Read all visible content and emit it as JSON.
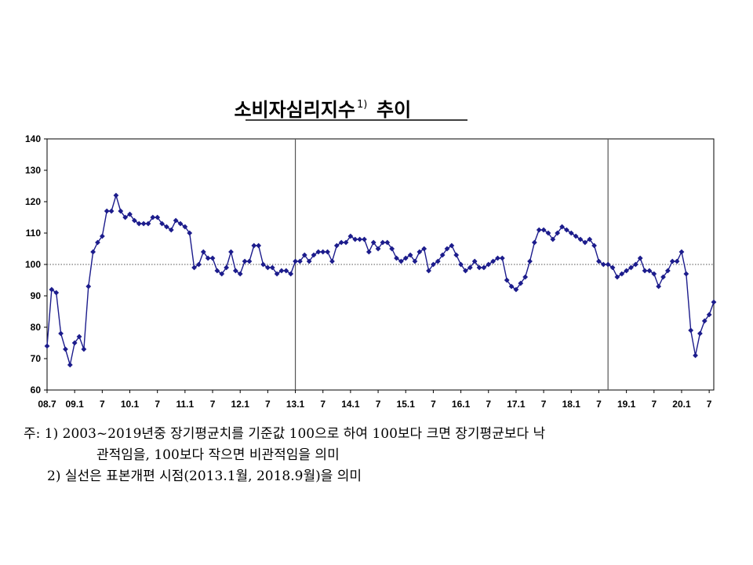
{
  "chart_data": {
    "type": "line",
    "title": "소비자심리지수",
    "title_sup": "1)",
    "title_suffix": "추이",
    "ylim": [
      60,
      140
    ],
    "yticks": [
      "60",
      "70",
      "80",
      "90",
      "100",
      "110",
      "120",
      "130",
      "140"
    ],
    "grid": false,
    "reference_line": 100,
    "vertical_lines": [
      "13.1",
      "18.9"
    ],
    "start": "2008.7",
    "xtick_labels": [
      {
        "label": "08.7",
        "month_index": 0
      },
      {
        "label": "09.1",
        "month_index": 6
      },
      {
        "label": "7",
        "month_index": 12
      },
      {
        "label": "10.1",
        "month_index": 18
      },
      {
        "label": "7",
        "month_index": 24
      },
      {
        "label": "11.1",
        "month_index": 30
      },
      {
        "label": "7",
        "month_index": 36
      },
      {
        "label": "12.1",
        "month_index": 42
      },
      {
        "label": "7",
        "month_index": 48
      },
      {
        "label": "13.1",
        "month_index": 54
      },
      {
        "label": "7",
        "month_index": 60
      },
      {
        "label": "14.1",
        "month_index": 66
      },
      {
        "label": "7",
        "month_index": 72
      },
      {
        "label": "15.1",
        "month_index": 78
      },
      {
        "label": "7",
        "month_index": 84
      },
      {
        "label": "16.1",
        "month_index": 90
      },
      {
        "label": "7",
        "month_index": 96
      },
      {
        "label": "17.1",
        "month_index": 102
      },
      {
        "label": "7",
        "month_index": 108
      },
      {
        "label": "18.1",
        "month_index": 114
      },
      {
        "label": "7",
        "month_index": 120
      },
      {
        "label": "19.1",
        "month_index": 126
      },
      {
        "label": "7",
        "month_index": 132
      },
      {
        "label": "20.1",
        "month_index": 138
      },
      {
        "label": "7",
        "month_index": 144
      }
    ],
    "series": [
      {
        "values": [
          74,
          92,
          91,
          78,
          73,
          68,
          75,
          77,
          73,
          93,
          104,
          107,
          109,
          117,
          117,
          122,
          117,
          115,
          116,
          114,
          113,
          113,
          113,
          115,
          115,
          113,
          112,
          111,
          114,
          113,
          112,
          110,
          99,
          100,
          104,
          102,
          102,
          98,
          97,
          99,
          104,
          98,
          97,
          101,
          101,
          106,
          106,
          100,
          99,
          99,
          97,
          98,
          98,
          97,
          101,
          101,
          103,
          101,
          103,
          104,
          104,
          104,
          101,
          106,
          107,
          107,
          109,
          108,
          108,
          108,
          104,
          107,
          105,
          107,
          107,
          105,
          102,
          101,
          102,
          103,
          101,
          104,
          105,
          98,
          100,
          101,
          103,
          105,
          106,
          103,
          100,
          98,
          99,
          101,
          99,
          99,
          100,
          101,
          102,
          102,
          95,
          93,
          92,
          94,
          96,
          101,
          107,
          111,
          111,
          110,
          108,
          110,
          112,
          111,
          110,
          109,
          108,
          107,
          108,
          106,
          101,
          100,
          100,
          99,
          96,
          97,
          98,
          99,
          100,
          102,
          98,
          98,
          97,
          93,
          96,
          98,
          101,
          101,
          104,
          97,
          79,
          71,
          78,
          82,
          84,
          88
        ]
      }
    ]
  },
  "notes": {
    "line1": "주: 1) 2003~2019년중 장기평균치를 기준값 100으로 하여 100보다 크면 장기평균보다 낙",
    "line2": "관적임을, 100보다 작으면 비관적임을 의미",
    "line3": "2) 실선은 표본개편 시점(2013.1월, 2018.9월)을 의미"
  },
  "colors": {
    "series": "#1c1c8c",
    "axis": "#000000",
    "reference": "#555555"
  }
}
